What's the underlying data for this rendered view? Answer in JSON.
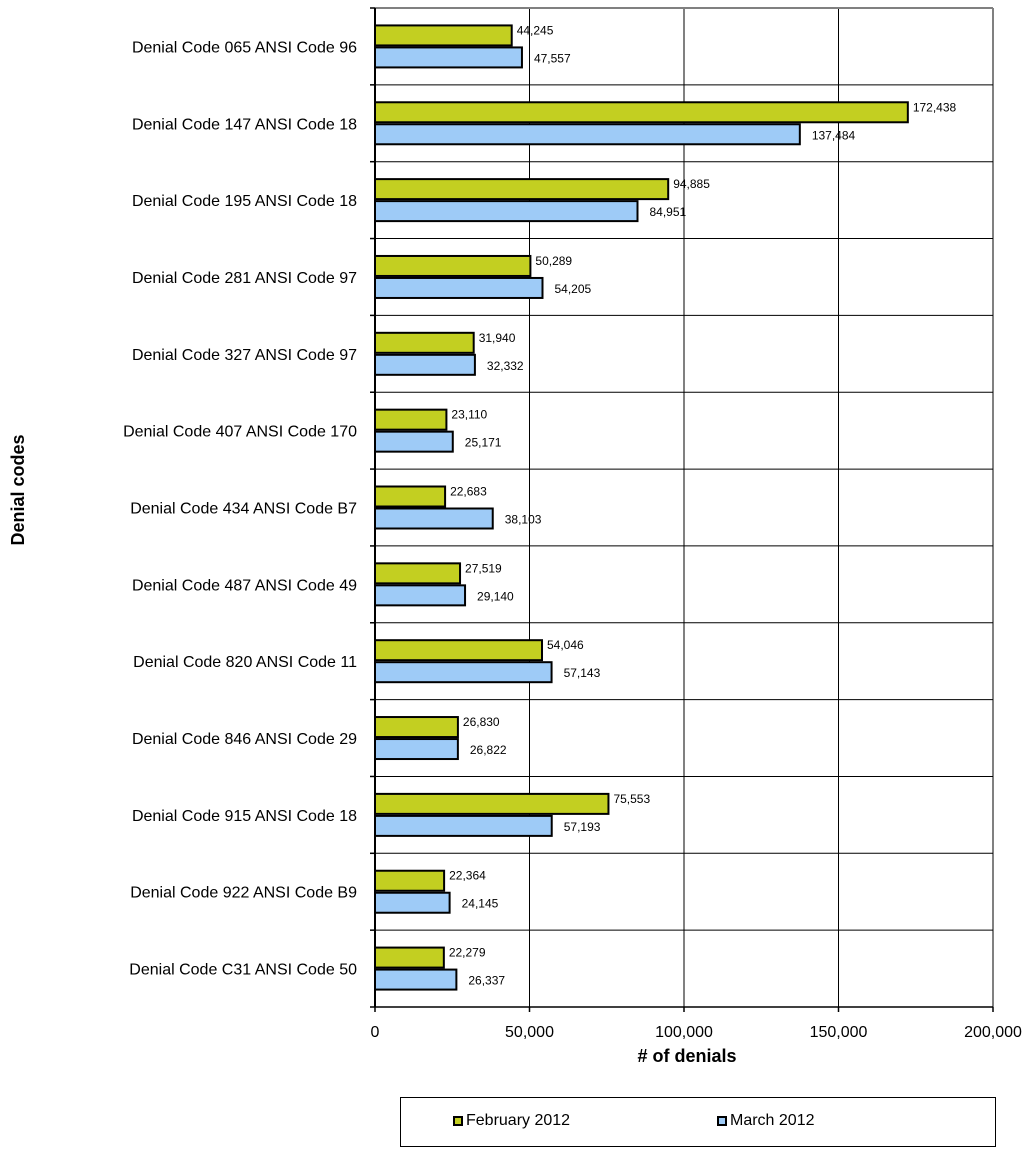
{
  "chart_data": {
    "type": "bar",
    "orientation": "horizontal",
    "title": "",
    "xlabel": "# of denials",
    "ylabel": "Denial codes",
    "xlim": [
      0,
      200000
    ],
    "x_ticks": [
      0,
      50000,
      100000,
      150000,
      200000
    ],
    "x_tick_labels": [
      "0",
      "50,000",
      "100,000",
      "150,000",
      "200,000"
    ],
    "grid": "vertical",
    "legend_position": "bottom",
    "categories": [
      "Denial Code 065 ANSI Code 96",
      "Denial Code 147 ANSI Code 18",
      "Denial Code 195 ANSI Code 18",
      "Denial Code 281 ANSI Code 97",
      "Denial Code 327 ANSI Code 97",
      "Denial Code 407 ANSI Code 170",
      "Denial Code 434 ANSI Code B7",
      "Denial Code 487 ANSI Code 49",
      "Denial Code 820 ANSI Code 11",
      "Denial Code 846 ANSI Code 29",
      "Denial Code 915 ANSI Code 18",
      "Denial Code 922 ANSI Code B9",
      "Denial Code C31 ANSI Code 50"
    ],
    "series": [
      {
        "name": "February 2012",
        "color": "#c3cf21",
        "values": [
          44245,
          172438,
          94885,
          50289,
          31940,
          23110,
          22683,
          27519,
          54046,
          26830,
          75553,
          22364,
          22279
        ],
        "labels": [
          "44,245",
          "172,438",
          "94,885",
          "50,289",
          "31,940",
          "23,110",
          "22,683",
          "27,519",
          "54,046",
          "26,830",
          "75,553",
          "22,364",
          "22,279"
        ]
      },
      {
        "name": "March 2012",
        "color": "#9ecbf7",
        "values": [
          47557,
          137484,
          84951,
          54205,
          32332,
          25171,
          38103,
          29140,
          57143,
          26822,
          57193,
          24145,
          26337
        ],
        "labels": [
          "47,557",
          "137,484",
          "84,951",
          "54,205",
          "32,332",
          "25,171",
          "38,103",
          "29,140",
          "57,143",
          "26,822",
          "57,193",
          "24,145",
          "26,337"
        ]
      }
    ]
  }
}
